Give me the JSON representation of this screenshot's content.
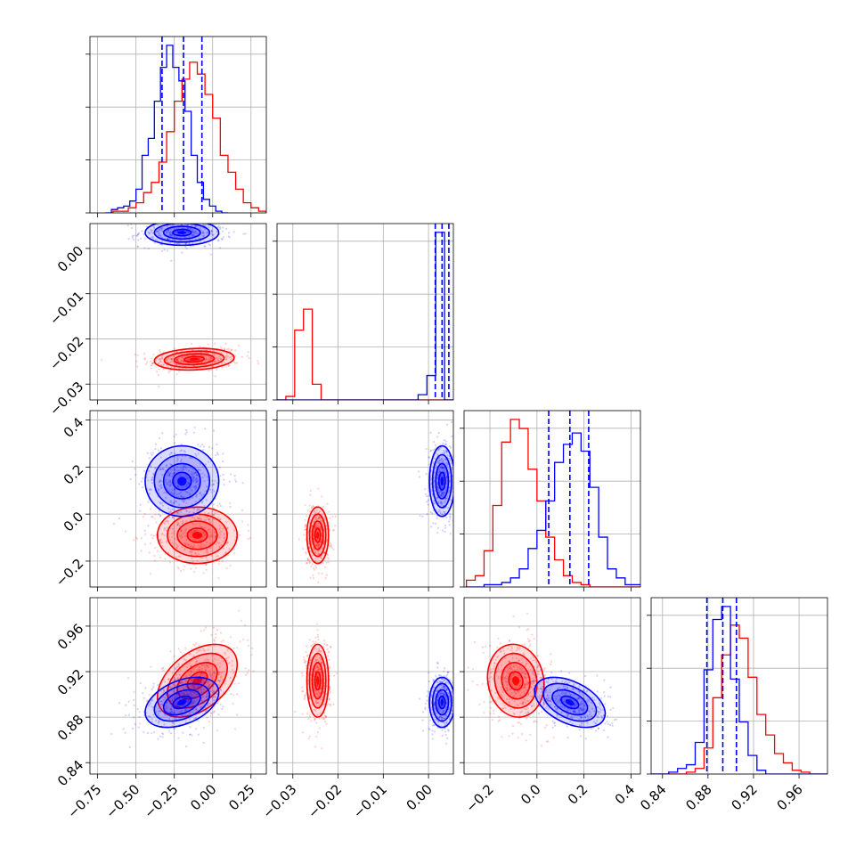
{
  "chart_data": {
    "type": "corner",
    "grid": true,
    "series": [
      {
        "color": "#0000ff"
      },
      {
        "color": "#ff0000"
      }
    ],
    "quantile_color": "#0000ff",
    "parameters": [
      {
        "range": [
          -0.8,
          0.35
        ],
        "ticks": [
          -0.75,
          -0.5,
          -0.25,
          0.0,
          0.25
        ],
        "tick_labels": [
          "−0.75",
          "−0.50",
          "−0.25",
          "0.00",
          "0.25"
        ],
        "quantiles": [
          -0.33,
          -0.19,
          -0.07
        ]
      },
      {
        "range": [
          -0.0335,
          0.0055
        ],
        "ticks": [
          -0.03,
          -0.02,
          -0.01,
          0.0
        ],
        "tick_labels": [
          "−0.03",
          "−0.02",
          "−0.01",
          "0.00"
        ],
        "quantiles": [
          0.0015,
          0.003,
          0.0045
        ]
      },
      {
        "range": [
          -0.31,
          0.44
        ],
        "ticks": [
          -0.2,
          0.0,
          0.2,
          0.4
        ],
        "tick_labels": [
          "−0.2",
          "0.0",
          "0.2",
          "0.4"
        ],
        "quantiles": [
          0.05,
          0.14,
          0.22
        ]
      },
      {
        "range": [
          0.83,
          0.985
        ],
        "ticks": [
          0.84,
          0.88,
          0.92,
          0.96
        ],
        "tick_labels": [
          "0.84",
          "0.88",
          "0.92",
          "0.96"
        ],
        "quantiles": [
          0.879,
          0.893,
          0.905
        ]
      }
    ],
    "histograms": [
      {
        "param": 0,
        "blue": {
          "edges_range": [
            -0.7,
            0.1
          ],
          "bins": 20,
          "counts": [
            0,
            2,
            3,
            4,
            7,
            14,
            34,
            44,
            66,
            86,
            99,
            86,
            78,
            60,
            34,
            18,
            8,
            4,
            1,
            0
          ]
        },
        "red": {
          "edges_range": [
            -0.65,
            0.35
          ],
          "bins": 20,
          "counts": [
            1,
            1,
            3,
            6,
            12,
            18,
            30,
            48,
            66,
            79,
            89,
            82,
            70,
            56,
            34,
            24,
            14,
            6,
            3,
            1
          ]
        }
      },
      {
        "param": 1,
        "blue": {
          "edges_range": [
            -0.0335,
            0.0055
          ],
          "bins": 20,
          "counts": [
            0,
            0,
            0,
            0,
            0,
            0,
            0,
            0,
            0,
            0,
            0,
            0,
            0,
            0,
            0,
            0,
            3,
            14,
            96,
            0
          ]
        },
        "red": {
          "edges_range": [
            -0.0335,
            0.0055
          ],
          "bins": 20,
          "counts": [
            0,
            2,
            40,
            52,
            9,
            0,
            0,
            0,
            0,
            0,
            0,
            0,
            0,
            0,
            0,
            0,
            0,
            0,
            0,
            0
          ]
        }
      },
      {
        "param": 2,
        "blue": {
          "edges_range": [
            -0.3,
            0.45
          ],
          "bins": 20,
          "counts": [
            0,
            0,
            1,
            1,
            2,
            4,
            8,
            17,
            25,
            38,
            55,
            63,
            68,
            60,
            44,
            22,
            8,
            4,
            1,
            1
          ]
        },
        "red": {
          "edges_range": [
            -0.3,
            0.45
          ],
          "bins": 20,
          "counts": [
            3,
            5,
            16,
            36,
            64,
            74,
            70,
            52,
            38,
            22,
            12,
            5,
            2,
            1,
            0,
            0,
            0,
            0,
            0,
            0
          ]
        }
      },
      {
        "param": 3,
        "blue": {
          "edges_range": [
            0.83,
            0.985
          ],
          "bins": 20,
          "counts": [
            0,
            0,
            1,
            3,
            5,
            17,
            56,
            83,
            90,
            51,
            28,
            10,
            2,
            0,
            0,
            0,
            0,
            0,
            0,
            0
          ]
        },
        "red": {
          "edges_range": [
            0.83,
            0.985
          ],
          "bins": 20,
          "counts": [
            0,
            0,
            0,
            0,
            1,
            3,
            14,
            41,
            64,
            80,
            73,
            52,
            32,
            21,
            11,
            6,
            2,
            1,
            0,
            0
          ]
        }
      }
    ],
    "joint_distributions": [
      {
        "px": 0,
        "py": 1,
        "blue": {
          "mean": [
            -0.2,
            0.0035
          ],
          "sd": [
            0.12,
            0.0014
          ],
          "rho": 0.0
        },
        "red": {
          "mean": [
            -0.12,
            -0.0245
          ],
          "sd": [
            0.13,
            0.0012
          ],
          "rho": 0.15
        }
      },
      {
        "px": 0,
        "py": 2,
        "blue": {
          "mean": [
            -0.2,
            0.14
          ],
          "sd": [
            0.12,
            0.075
          ],
          "rho": 0.0
        },
        "red": {
          "mean": [
            -0.1,
            -0.09
          ],
          "sd": [
            0.13,
            0.06
          ],
          "rho": 0.0
        }
      },
      {
        "px": 1,
        "py": 2,
        "blue": {
          "mean": [
            0.003,
            0.14
          ],
          "sd": [
            0.0014,
            0.075
          ],
          "rho": 0.0
        },
        "red": {
          "mean": [
            -0.0245,
            -0.09
          ],
          "sd": [
            0.0012,
            0.06
          ],
          "rho": 0.0
        }
      },
      {
        "px": 0,
        "py": 3,
        "blue": {
          "mean": [
            -0.2,
            0.893
          ],
          "sd": [
            0.12,
            0.011
          ],
          "rho": 0.4
        },
        "red": {
          "mean": [
            -0.1,
            0.912
          ],
          "sd": [
            0.13,
            0.016
          ],
          "rho": 0.45
        }
      },
      {
        "px": 1,
        "py": 3,
        "blue": {
          "mean": [
            0.003,
            0.893
          ],
          "sd": [
            0.0014,
            0.011
          ],
          "rho": 0.0
        },
        "red": {
          "mean": [
            -0.0245,
            0.912
          ],
          "sd": [
            0.0012,
            0.016
          ],
          "rho": 0.0
        }
      },
      {
        "px": 2,
        "py": 3,
        "blue": {
          "mean": [
            0.14,
            0.893
          ],
          "sd": [
            0.075,
            0.011
          ],
          "rho": -0.45
        },
        "red": {
          "mean": [
            -0.09,
            0.912
          ],
          "sd": [
            0.06,
            0.016
          ],
          "rho": -0.1
        }
      }
    ],
    "contour_levels": [
      0.5,
      1.0,
      1.5,
      2.0
    ]
  }
}
